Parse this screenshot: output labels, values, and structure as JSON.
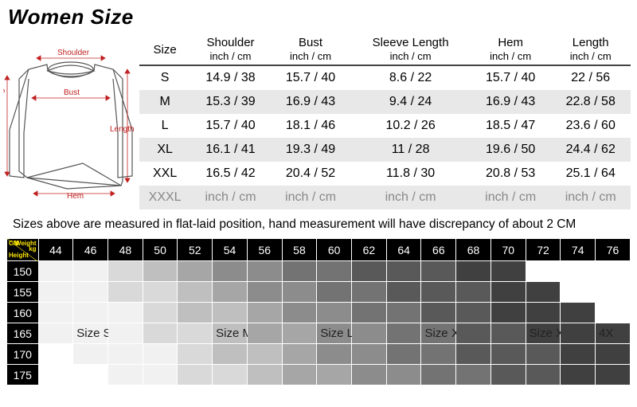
{
  "title": "Women Size",
  "main_table": {
    "columns": [
      "Size",
      "Shoulder",
      "Bust",
      "Sleeve Length",
      "Hem",
      "Length"
    ],
    "unit_sub": "inch / cm",
    "rows": [
      {
        "size": "S",
        "shoulder": "14.9 / 38",
        "bust": "15.7 / 40",
        "sleeve": "8.6 / 22",
        "hem": "15.7 / 40",
        "length": "22 / 56"
      },
      {
        "size": "M",
        "shoulder": "15.3 / 39",
        "bust": "16.9 / 43",
        "sleeve": "9.4 / 24",
        "hem": "16.9 / 43",
        "length": "22.8 / 58"
      },
      {
        "size": "L",
        "shoulder": "15.7 / 40",
        "bust": "18.1 / 46",
        "sleeve": "10.2 / 26",
        "hem": "18.5 / 47",
        "length": "23.6 / 60"
      },
      {
        "size": "XL",
        "shoulder": "16.1 / 41",
        "bust": "19.3 / 49",
        "sleeve": "11 / 28",
        "hem": "19.6 / 50",
        "length": "24.4 / 62"
      },
      {
        "size": "XXL",
        "shoulder": "16.5 / 42",
        "bust": "20.4 / 52",
        "sleeve": "11.8 / 30",
        "hem": "20.8 / 53",
        "length": "25.1 / 64"
      },
      {
        "size": "XXXL",
        "shoulder": "inch / cm",
        "bust": "inch / cm",
        "sleeve": "inch / cm",
        "hem": "inch / cm",
        "length": "inch / cm"
      }
    ]
  },
  "note": "Sizes above are measured in flat-laid position, hand measurement will have discrepancy of about 2 CM",
  "diagram_labels": {
    "shoulder": "Shoulder",
    "bust": "Bust",
    "sleeve": "Sleeve Length",
    "length": "Length",
    "hem": "Hem"
  },
  "grid": {
    "corner": {
      "cm": "CM",
      "weight": "Weight",
      "height": "Height",
      "kg": "kg"
    },
    "weights": [
      "44",
      "46",
      "48",
      "50",
      "52",
      "54",
      "56",
      "58",
      "60",
      "62",
      "64",
      "66",
      "68",
      "70",
      "72",
      "74",
      "76"
    ],
    "heights": [
      "150",
      "155",
      "160",
      "165",
      "170",
      "175"
    ],
    "cells": [
      [
        "g1",
        "g1",
        "g2",
        "g3",
        "g4",
        "g5",
        "g5",
        "g6",
        "g6",
        "g7",
        "g7",
        "g7",
        "g8",
        "g8",
        "gw",
        "gw",
        "gw"
      ],
      [
        "g1",
        "g1",
        "g2",
        "g2",
        "g3",
        "g4",
        "g5",
        "g5",
        "g6",
        "g6",
        "g7",
        "g7",
        "g7",
        "g8",
        "g8",
        "gw",
        "gw"
      ],
      [
        "g1",
        "g1",
        "g1",
        "g2",
        "g3",
        "g3",
        "g4",
        "g5",
        "g5",
        "g6",
        "g6",
        "g7",
        "g7",
        "g8",
        "g8",
        "g8",
        "gw"
      ],
      [
        "g1",
        "g1",
        "g1",
        "g2",
        "g2",
        "g3",
        "g4",
        "g4",
        "g5",
        "g5",
        "g6",
        "g6",
        "g7",
        "g7",
        "g8",
        "g8",
        "g8"
      ],
      [
        "gw",
        "g1",
        "g1",
        "g1",
        "g2",
        "g3",
        "g3",
        "g4",
        "g5",
        "g5",
        "g6",
        "g6",
        "g7",
        "g7",
        "g7",
        "g8",
        "g8"
      ],
      [
        "gw",
        "gw",
        "g1",
        "g1",
        "g2",
        "g2",
        "g3",
        "g4",
        "g4",
        "g5",
        "g5",
        "g6",
        "g6",
        "g7",
        "g7",
        "g8",
        "g8"
      ]
    ],
    "size_labels": {
      "s": "Size S",
      "m": "Size M",
      "l": "Size L",
      "xl": "Size XL",
      "xxl": "Size  XXL",
      "4xl": "4X"
    },
    "colors": {
      "g1": "#f1f1f1",
      "g2": "#d9d9d9",
      "g3": "#bfbfbf",
      "g4": "#a6a6a6",
      "g5": "#8c8c8c",
      "g6": "#737373",
      "g7": "#595959",
      "g8": "#404040",
      "gw": "#ffffff",
      "header_bg": "#000000",
      "header_fg": "#ffffff",
      "corner_fg": "#ffe800",
      "diagram_red": "#c02020"
    }
  }
}
